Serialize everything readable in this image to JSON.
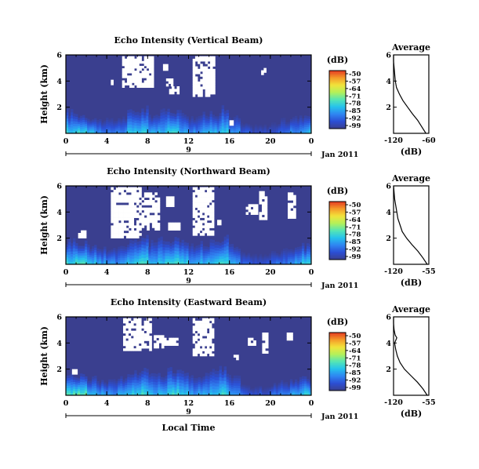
{
  "figure": {
    "xlabel": "Local Time",
    "cbar_unit": "(dB)",
    "avg_title": "Average",
    "avg_xlabel": "(dB)",
    "month_label": "Jan 2011",
    "day_label": "9"
  },
  "colors": {
    "background": "#3a3f8f",
    "ramp": [
      "#3a3f8f",
      "#2c4fd4",
      "#2f86f2",
      "#26c2ec",
      "#55e6b4",
      "#b4f05a",
      "#f2e43a",
      "#f59a2a",
      "#e43a22"
    ],
    "nodata": "#ffffff"
  },
  "chart_data": [
    {
      "type": "heatmap",
      "title": "Echo Intensity (Vertical Beam)",
      "ylabel": "Height (km)",
      "xlim": [
        0,
        24
      ],
      "ylim": [
        0,
        6
      ],
      "xticks": [
        "0",
        "4",
        "8",
        "12",
        "16",
        "20",
        "0"
      ],
      "yticks": [
        "2",
        "4",
        "6"
      ],
      "colorbar": {
        "ticks": [
          "-50",
          "-57",
          "-64",
          "-71",
          "-78",
          "-85",
          "-92",
          "-99"
        ],
        "range": [
          -99,
          -50
        ]
      },
      "echo_top_km": [
        1.6,
        1.4,
        1.2,
        1.0,
        1.0,
        1.2,
        1.6,
        1.8,
        1.4,
        1.6,
        1.8,
        1.6,
        1.2,
        1.4,
        1.6,
        1.8,
        1.2,
        0.7,
        0.6,
        0.6,
        0.8,
        1.0,
        1.2,
        1.4
      ],
      "intensity_near_ground_db": [
        -80,
        -78,
        -82,
        -86,
        -88,
        -86,
        -82,
        -80,
        -84,
        -82,
        -80,
        -82,
        -86,
        -84,
        -82,
        -80,
        -86,
        -92,
        -94,
        -94,
        -92,
        -90,
        -86,
        -82
      ],
      "nodata_regions": [
        {
          "hours": [
            5.5,
            8.6
          ],
          "km": [
            3.5,
            5.9
          ]
        },
        {
          "hours": [
            9.5,
            10.0
          ],
          "km": [
            4.8,
            5.3
          ]
        },
        {
          "hours": [
            9.8,
            10.5
          ],
          "km": [
            3.6,
            4.2
          ]
        },
        {
          "hours": [
            10.1,
            11.1
          ],
          "km": [
            3.0,
            3.6
          ]
        },
        {
          "hours": [
            12.4,
            14.6
          ],
          "km": [
            2.8,
            5.9
          ]
        },
        {
          "hours": [
            16.0,
            16.4
          ],
          "km": [
            0.6,
            1.0
          ]
        },
        {
          "hours": [
            19.1,
            19.6
          ],
          "km": [
            4.3,
            5.0
          ]
        },
        {
          "hours": [
            4.4,
            4.9
          ],
          "km": [
            3.7,
            4.1
          ]
        }
      ],
      "average": {
        "xticks": [
          "-120",
          "-60"
        ],
        "xlim": [
          -120,
          -60
        ],
        "yticks": [
          "2",
          "4",
          "6"
        ],
        "ylim": [
          0,
          6
        ],
        "y_km": [
          0.0,
          0.5,
          1.0,
          1.5,
          2.0,
          2.5,
          3.0,
          3.5,
          4.0,
          4.5,
          5.0,
          5.5,
          6.0
        ],
        "x_db": [
          -65,
          -72,
          -79,
          -88,
          -96,
          -104,
          -110,
          -115,
          -117,
          -118,
          -119,
          -120,
          -120
        ]
      }
    },
    {
      "type": "heatmap",
      "title": "Echo Intensity (Northward Beam)",
      "ylabel": "Height (km)",
      "xlim": [
        0,
        24
      ],
      "ylim": [
        0,
        6
      ],
      "xticks": [
        "0",
        "4",
        "8",
        "12",
        "16",
        "20",
        "0"
      ],
      "yticks": [
        "2",
        "4",
        "6"
      ],
      "colorbar": {
        "ticks": [
          "-50",
          "-57",
          "-64",
          "-71",
          "-78",
          "-85",
          "-92",
          "-99"
        ],
        "range": [
          -99,
          -50
        ]
      },
      "echo_top_km": [
        1.8,
        1.6,
        1.4,
        1.2,
        1.2,
        1.4,
        1.8,
        2.0,
        1.6,
        1.8,
        2.0,
        1.8,
        1.4,
        1.6,
        1.8,
        2.0,
        1.4,
        0.9,
        0.7,
        0.7,
        0.9,
        1.1,
        1.2,
        1.4
      ],
      "intensity_near_ground_db": [
        -78,
        -76,
        -80,
        -84,
        -86,
        -84,
        -80,
        -78,
        -82,
        -80,
        -78,
        -80,
        -84,
        -82,
        -80,
        -78,
        -84,
        -90,
        -92,
        -92,
        -90,
        -88,
        -84,
        -80
      ],
      "nodata_regions": [
        {
          "hours": [
            4.4,
            7.4
          ],
          "km": [
            2.0,
            5.9
          ]
        },
        {
          "hours": [
            7.4,
            9.2
          ],
          "km": [
            2.6,
            5.5
          ]
        },
        {
          "hours": [
            9.8,
            10.6
          ],
          "km": [
            4.4,
            5.2
          ]
        },
        {
          "hours": [
            10.0,
            11.2
          ],
          "km": [
            2.6,
            3.2
          ]
        },
        {
          "hours": [
            12.4,
            14.5
          ],
          "km": [
            2.2,
            5.9
          ]
        },
        {
          "hours": [
            1.2,
            2.0
          ],
          "km": [
            2.0,
            2.6
          ]
        },
        {
          "hours": [
            17.6,
            18.8
          ],
          "km": [
            3.8,
            4.6
          ]
        },
        {
          "hours": [
            18.9,
            19.7
          ],
          "km": [
            3.4,
            5.6
          ]
        },
        {
          "hours": [
            21.7,
            22.5
          ],
          "km": [
            3.5,
            5.5
          ]
        },
        {
          "hours": [
            14.8,
            15.2
          ],
          "km": [
            3.0,
            3.4
          ]
        }
      ],
      "average": {
        "xticks": [
          "-120",
          "-55"
        ],
        "xlim": [
          -120,
          -55
        ],
        "yticks": [
          "2",
          "4",
          "6"
        ],
        "ylim": [
          0,
          6
        ],
        "y_km": [
          0.0,
          0.5,
          1.0,
          1.5,
          2.0,
          2.5,
          3.0,
          3.5,
          4.0,
          4.5,
          5.0,
          5.5,
          6.0
        ],
        "x_db": [
          -58,
          -66,
          -75,
          -86,
          -96,
          -104,
          -108,
          -112,
          -114,
          -116,
          -118,
          -119,
          -120
        ]
      }
    },
    {
      "type": "heatmap",
      "title": "Echo Intensity (Eastward Beam)",
      "ylabel": "Height (km)",
      "xlim": [
        0,
        24
      ],
      "ylim": [
        0,
        6
      ],
      "xticks": [
        "0",
        "4",
        "8",
        "12",
        "16",
        "20",
        "0"
      ],
      "yticks": [
        "2",
        "4",
        "6"
      ],
      "colorbar": {
        "ticks": [
          "-50",
          "-57",
          "-64",
          "-71",
          "-78",
          "-85",
          "-92",
          "-99"
        ],
        "range": [
          -99,
          -50
        ]
      },
      "echo_top_km": [
        1.6,
        1.4,
        1.3,
        1.1,
        1.1,
        1.3,
        1.7,
        1.9,
        1.5,
        1.7,
        1.9,
        1.7,
        1.3,
        1.5,
        1.7,
        1.9,
        1.3,
        0.8,
        0.6,
        0.6,
        0.8,
        1.0,
        1.2,
        1.3
      ],
      "intensity_near_ground_db": [
        -76,
        -74,
        -80,
        -84,
        -86,
        -84,
        -80,
        -78,
        -82,
        -80,
        -78,
        -80,
        -84,
        -82,
        -80,
        -78,
        -84,
        -90,
        -92,
        -92,
        -90,
        -88,
        -84,
        -80
      ],
      "nodata_regions": [
        {
          "hours": [
            5.6,
            8.4
          ],
          "km": [
            3.4,
            5.9
          ]
        },
        {
          "hours": [
            8.6,
            9.6
          ],
          "km": [
            3.6,
            4.6
          ]
        },
        {
          "hours": [
            9.6,
            11.0
          ],
          "km": [
            3.8,
            4.4
          ]
        },
        {
          "hours": [
            12.4,
            14.5
          ],
          "km": [
            3.0,
            5.9
          ]
        },
        {
          "hours": [
            0.6,
            1.4
          ],
          "km": [
            1.6,
            2.0
          ]
        },
        {
          "hours": [
            17.8,
            18.6
          ],
          "km": [
            3.8,
            4.4
          ]
        },
        {
          "hours": [
            19.2,
            19.8
          ],
          "km": [
            3.2,
            4.8
          ]
        },
        {
          "hours": [
            21.6,
            22.2
          ],
          "km": [
            4.2,
            4.8
          ]
        },
        {
          "hours": [
            16.4,
            16.9
          ],
          "km": [
            2.7,
            3.1
          ]
        }
      ],
      "average": {
        "xticks": [
          "-120",
          "-55"
        ],
        "xlim": [
          -120,
          -55
        ],
        "yticks": [
          "2",
          "4",
          "6"
        ],
        "ylim": [
          0,
          6
        ],
        "y_km": [
          0.0,
          0.5,
          1.0,
          1.5,
          2.0,
          2.5,
          3.0,
          3.5,
          4.0,
          4.2,
          4.4,
          4.6,
          5.0,
          5.5,
          6.0
        ],
        "x_db": [
          -58,
          -66,
          -76,
          -88,
          -100,
          -108,
          -113,
          -116,
          -118,
          -116,
          -114,
          -117,
          -119,
          -120,
          -120
        ]
      }
    }
  ]
}
